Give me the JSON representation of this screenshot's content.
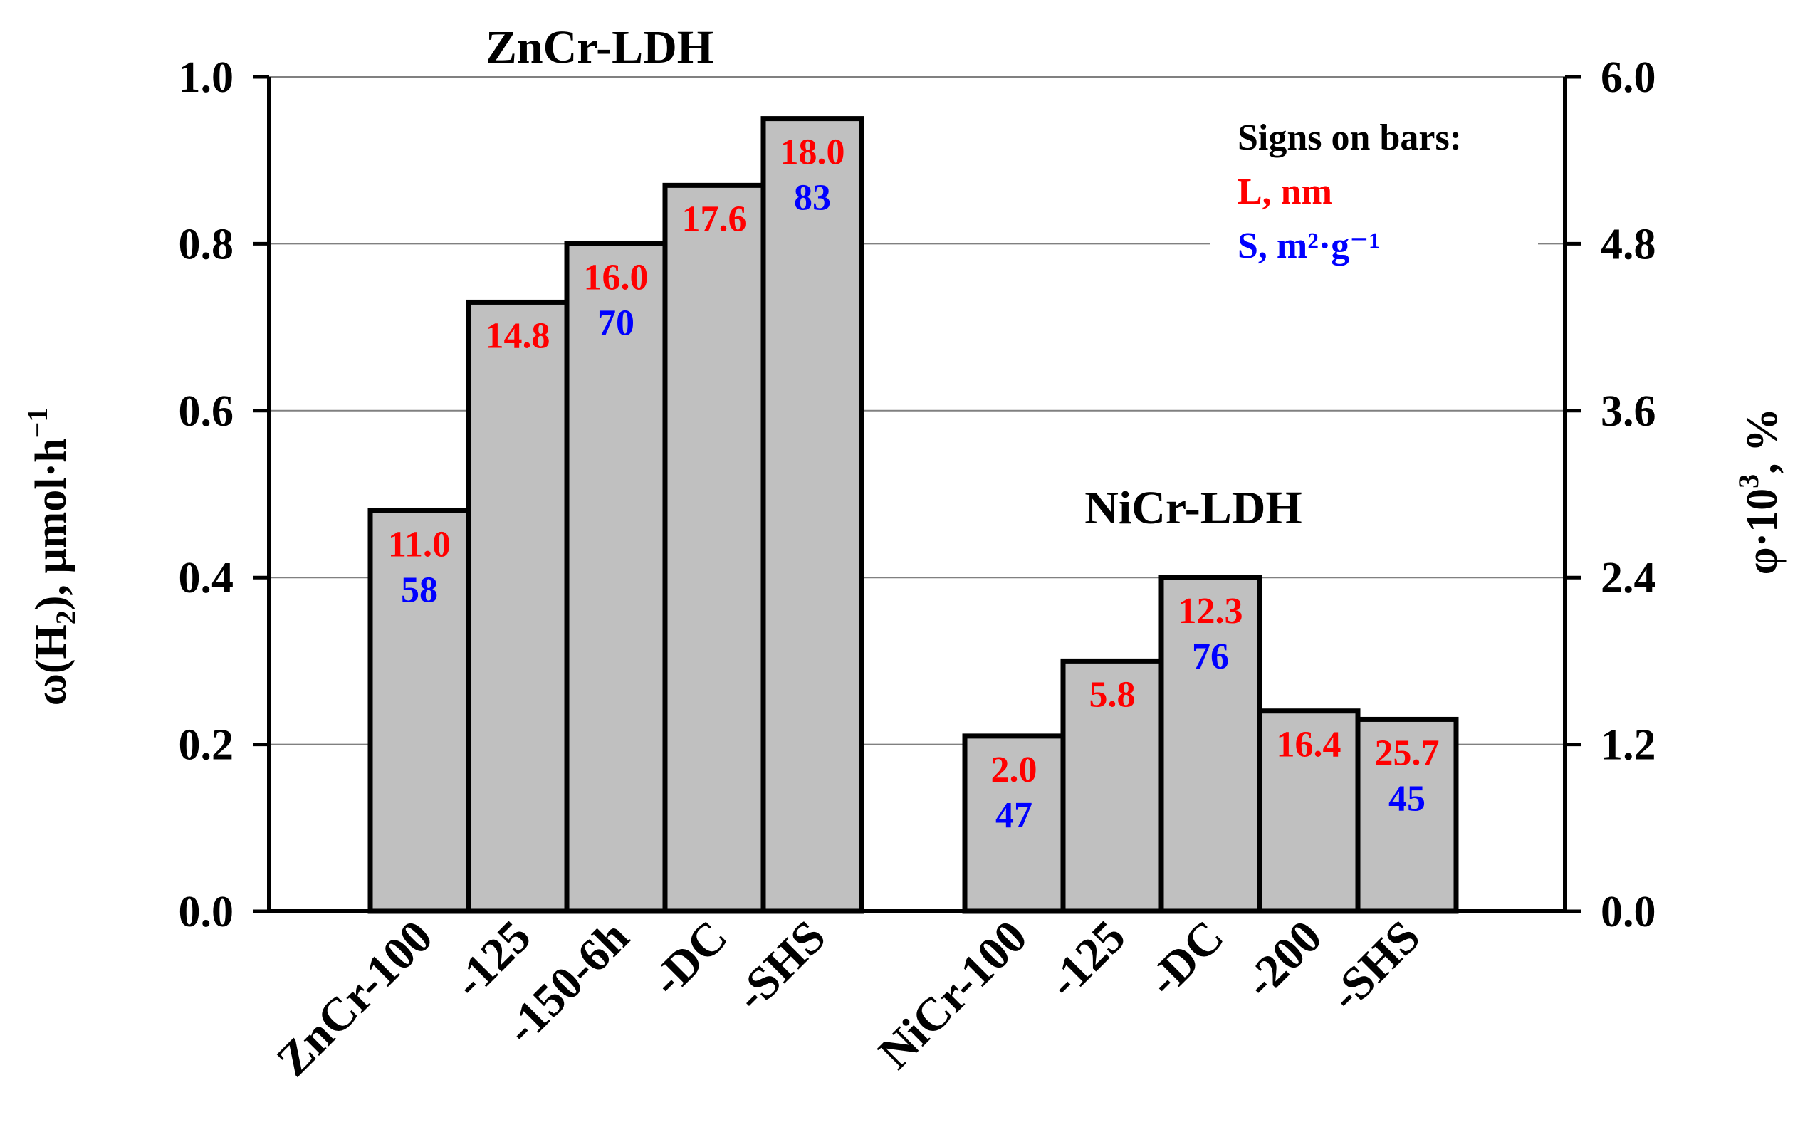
{
  "chart_data": {
    "type": "bar",
    "title": "",
    "groups": [
      {
        "name": "ZnCr-LDH",
        "categories": [
          "ZnCr-100",
          "-125",
          "-150-6h",
          "-DC",
          "-SHS"
        ],
        "values": [
          0.48,
          0.73,
          0.8,
          0.87,
          0.95
        ],
        "L_nm": [
          "11.0",
          "14.8",
          "16.0",
          "17.6",
          "18.0"
        ],
        "S_m2g": [
          "58",
          "",
          "70",
          "",
          "83"
        ]
      },
      {
        "name": "NiCr-LDH",
        "categories": [
          "NiCr-100",
          "-125",
          "-DC",
          "-200",
          "-SHS"
        ],
        "values": [
          0.21,
          0.3,
          0.4,
          0.24,
          0.23
        ],
        "L_nm": [
          "2.0",
          "5.8",
          "12.3",
          "16.4",
          "25.7"
        ],
        "S_m2g": [
          "47",
          "",
          "76",
          "",
          "45"
        ]
      }
    ],
    "y_left": {
      "label_main": "ω(H",
      "label_sub": "2",
      "label_tail": "), μmol·h",
      "label_sup": "−1",
      "range": [
        0.0,
        1.0
      ],
      "ticks": [
        "0.0",
        "0.2",
        "0.4",
        "0.6",
        "0.8",
        "1.0"
      ]
    },
    "y_right": {
      "label_main": "φ·10",
      "label_sup": "3",
      "label_tail": ", %",
      "range": [
        0.0,
        6.0
      ],
      "ticks": [
        "0.0",
        "1.2",
        "2.4",
        "3.6",
        "4.8",
        "6.0"
      ]
    },
    "legend": {
      "title": "Signs on bars:",
      "L_label": "L, nm",
      "S_label": "S, m²·g⁻¹",
      "placement": "top-right"
    },
    "grid": true,
    "colors": {
      "bar_fill": "#c0c0c0",
      "bar_stroke": "#000000",
      "L_text": "#ff0000",
      "S_text": "#0000ff",
      "grid": "#808080"
    }
  }
}
